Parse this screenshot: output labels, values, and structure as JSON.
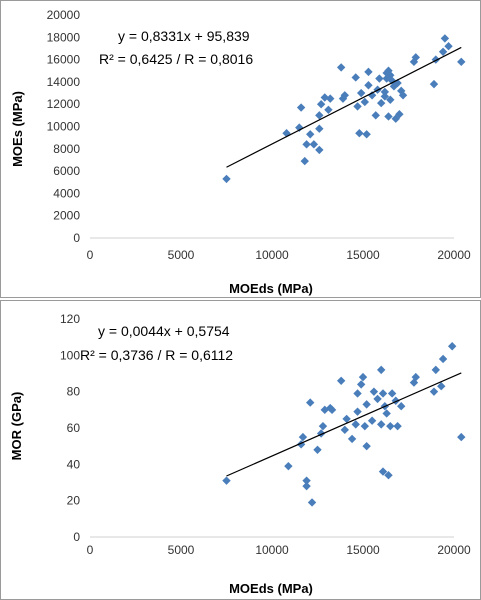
{
  "marker_color": "#4a7ebb",
  "trendline_color": "#000000",
  "chart_data": [
    {
      "type": "scatter",
      "xlabel": "MOEds (MPa)",
      "ylabel": "MOEs (MPa)",
      "xlim": [
        0,
        20000
      ],
      "ylim": [
        0,
        20000
      ],
      "xticks": [
        0,
        5000,
        10000,
        15000,
        20000
      ],
      "yticks": [
        0,
        2000,
        4000,
        6000,
        8000,
        10000,
        12000,
        14000,
        16000,
        18000,
        20000
      ],
      "xtick_labels": [
        "0",
        "5000",
        "10000",
        "15000",
        "20000"
      ],
      "ytick_labels": [
        "0",
        "2000",
        "4000",
        "6000",
        "8000",
        "10000",
        "12000",
        "14000",
        "16000",
        "18000",
        "20000"
      ],
      "equation": "y = 0,8331x + 95,839",
      "r_squared": "R² = 0,6425  /  R = 0,8016",
      "trendline": {
        "slope": 0.8331,
        "intercept": 95.839,
        "x_range": [
          7500,
          20400
        ]
      },
      "grid": false,
      "points": [
        [
          7500,
          5300
        ],
        [
          10800,
          9400
        ],
        [
          11500,
          9900
        ],
        [
          11600,
          11700
        ],
        [
          11900,
          8400
        ],
        [
          11800,
          6900
        ],
        [
          12300,
          8400
        ],
        [
          12100,
          9300
        ],
        [
          12600,
          7900
        ],
        [
          12600,
          9800
        ],
        [
          12600,
          11000
        ],
        [
          12700,
          12000
        ],
        [
          12900,
          12600
        ],
        [
          13100,
          11500
        ],
        [
          13200,
          12500
        ],
        [
          13900,
          12500
        ],
        [
          13800,
          15300
        ],
        [
          14000,
          12800
        ],
        [
          14600,
          14400
        ],
        [
          14700,
          11800
        ],
        [
          14900,
          13000
        ],
        [
          14800,
          9400
        ],
        [
          15100,
          12200
        ],
        [
          15200,
          9300
        ],
        [
          15300,
          13700
        ],
        [
          15300,
          14900
        ],
        [
          15500,
          12800
        ],
        [
          15700,
          11000
        ],
        [
          15800,
          13300
        ],
        [
          15900,
          14300
        ],
        [
          16000,
          12100
        ],
        [
          16200,
          13100
        ],
        [
          16300,
          14800
        ],
        [
          16300,
          14300
        ],
        [
          16400,
          15000
        ],
        [
          16500,
          14600
        ],
        [
          16200,
          12700
        ],
        [
          16500,
          12400
        ],
        [
          16400,
          10900
        ],
        [
          16600,
          14100
        ],
        [
          16700,
          13600
        ],
        [
          16900,
          13900
        ],
        [
          17100,
          13200
        ],
        [
          17000,
          11100
        ],
        [
          17200,
          12800
        ],
        [
          16800,
          10700
        ],
        [
          17800,
          15800
        ],
        [
          17900,
          16200
        ],
        [
          18900,
          13800
        ],
        [
          19000,
          16000
        ],
        [
          19400,
          16700
        ],
        [
          19500,
          17900
        ],
        [
          19700,
          17200
        ],
        [
          20400,
          15800
        ]
      ]
    },
    {
      "type": "scatter",
      "xlabel": "MOEds (MPa)",
      "ylabel": "MOR (GPa)",
      "xlim": [
        0,
        20000
      ],
      "ylim": [
        0,
        120
      ],
      "xticks": [
        0,
        5000,
        10000,
        15000,
        20000
      ],
      "yticks": [
        0,
        20,
        40,
        60,
        80,
        100,
        120
      ],
      "xtick_labels": [
        "0",
        "5000",
        "10000",
        "15000",
        "20000"
      ],
      "ytick_labels": [
        "0",
        "20",
        "40",
        "60",
        "80",
        "100",
        "120"
      ],
      "equation": "y = 0,0044x + 0,5754",
      "r_squared": "R² = 0,3736  /  R = 0,6112",
      "trendline": {
        "slope": 0.0044,
        "intercept": 0.5754,
        "x_range": [
          7500,
          20400
        ]
      },
      "grid": false,
      "points": [
        [
          7500,
          31
        ],
        [
          10900,
          39
        ],
        [
          11600,
          51
        ],
        [
          11700,
          55
        ],
        [
          11900,
          31
        ],
        [
          11900,
          28
        ],
        [
          12200,
          19
        ],
        [
          12100,
          74
        ],
        [
          12500,
          48
        ],
        [
          12700,
          57
        ],
        [
          12800,
          61
        ],
        [
          12900,
          70
        ],
        [
          13200,
          71
        ],
        [
          13300,
          70
        ],
        [
          13800,
          86
        ],
        [
          14000,
          59
        ],
        [
          14100,
          65
        ],
        [
          14400,
          54
        ],
        [
          14600,
          62
        ],
        [
          14700,
          69
        ],
        [
          14700,
          79
        ],
        [
          14900,
          84
        ],
        [
          15000,
          88
        ],
        [
          15100,
          61
        ],
        [
          15200,
          73
        ],
        [
          15200,
          50
        ],
        [
          15500,
          64
        ],
        [
          15600,
          80
        ],
        [
          15800,
          76
        ],
        [
          16000,
          92
        ],
        [
          16100,
          79
        ],
        [
          16200,
          72
        ],
        [
          16000,
          62
        ],
        [
          16100,
          36
        ],
        [
          16300,
          68
        ],
        [
          16400,
          34
        ],
        [
          16500,
          61
        ],
        [
          16600,
          79
        ],
        [
          16800,
          75
        ],
        [
          16900,
          61
        ],
        [
          17100,
          72
        ],
        [
          17800,
          85
        ],
        [
          17900,
          88
        ],
        [
          18900,
          80
        ],
        [
          19000,
          92
        ],
        [
          19300,
          83
        ],
        [
          19400,
          98
        ],
        [
          19900,
          105
        ],
        [
          20400,
          55
        ]
      ]
    }
  ]
}
